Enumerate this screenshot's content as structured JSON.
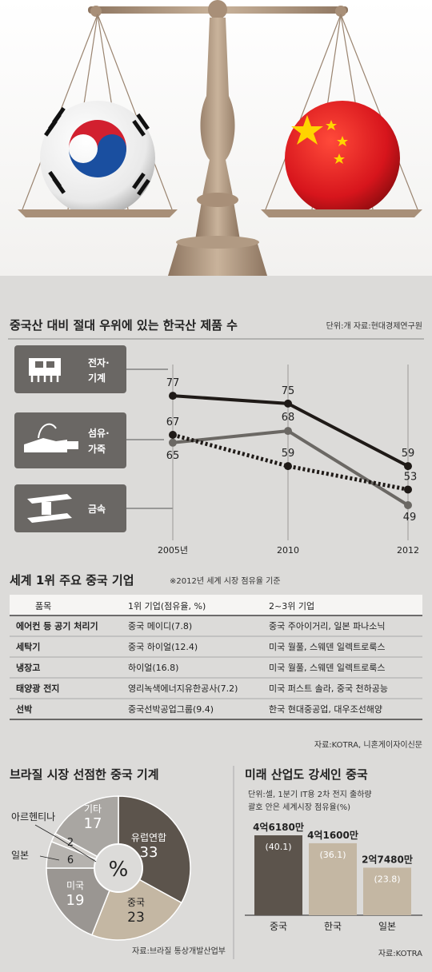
{
  "line_section": {
    "title": "중국산 대비 절대 우위에 있는 한국산 제품 수",
    "unit_source": "단위:개 자료:현대경제연구원",
    "categories": [
      {
        "label_line1": "전자·",
        "label_line2": "기계",
        "icon": "circuit-chip-icon"
      },
      {
        "label_line1": "섬유·",
        "label_line2": "가죽",
        "icon": "sneaker-icon"
      },
      {
        "label_line1": "금속",
        "label_line2": "",
        "icon": "steel-beam-icon"
      }
    ]
  },
  "table_section": {
    "title": "세계 1위 주요 중국 기업",
    "subtitle": "※2012년 세계 시장 점유율 기준",
    "headers": [
      "품목",
      "1위 기업(점유율, %)",
      "2~3위 기업"
    ],
    "rows": [
      [
        "에어컨 등 공기 처리기",
        "중국 메이디(7.8)",
        "중국 주아이거리, 일본 파나소닉"
      ],
      [
        "세탁기",
        "중국 하이얼(12.4)",
        "미국 월풀, 스웨덴 일렉트로룩스"
      ],
      [
        "냉장고",
        "하이얼(16.8)",
        "미국 월풀, 스웨덴 일렉트로룩스"
      ],
      [
        "태양광 전지",
        "영리녹색에너지유한공사(7.2)",
        "미국 퍼스트 솔라, 중국 천하공능"
      ],
      [
        "선박",
        "중국선박공업그룹(9.4)",
        "한국 현대중공업, 대우조선해양"
      ]
    ],
    "source": "자료:KOTRA, 니혼게이자이신문"
  },
  "pie_section": {
    "title": "브라질 시장 선점한 중국 기계",
    "center_label": "%",
    "source": "자료:브라질 통상개발산업부"
  },
  "bar_section": {
    "title": "미래 산업도 강세인 중국",
    "note_line1": "단위:셀, 1분기 IT용 2차 전지 출하량",
    "note_line2": "괄호 안은 세계시장 점유율(%)",
    "source": "자료:KOTRA"
  },
  "chart_data": [
    {
      "type": "line",
      "title": "중국산 대비 절대 우위에 있는 한국산 제품 수",
      "x": [
        "2005년",
        "2010",
        "2012"
      ],
      "series": [
        {
          "name": "전자·기계",
          "values": [
            77,
            75,
            59
          ],
          "color": "#1f1a17"
        },
        {
          "name": "섬유·가죽",
          "values": [
            65,
            68,
            49
          ],
          "color": "#6b6864"
        },
        {
          "name": "금속",
          "values": [
            67,
            59,
            53
          ],
          "color": "#1f1a17",
          "style": "dotted"
        }
      ],
      "ylim": [
        40,
        85
      ]
    },
    {
      "type": "pie",
      "title": "브라질 시장 선점한 중국 기계",
      "slices": [
        {
          "label": "유럽연합",
          "value": 33,
          "color": "#5c544c"
        },
        {
          "label": "중국",
          "value": 23,
          "color": "#c4b7a3"
        },
        {
          "label": "미국",
          "value": 19,
          "color": "#9a9692"
        },
        {
          "label": "일본",
          "value": 6,
          "color": "#b5b2ae"
        },
        {
          "label": "아르헨티나",
          "value": 2,
          "color": "#d2cfcb"
        },
        {
          "label": "기타",
          "value": 17,
          "color": "#a9a6a2"
        }
      ]
    },
    {
      "type": "bar",
      "title": "미래 산업도 강세인 중국",
      "categories": [
        "중국",
        "한국",
        "일본"
      ],
      "values": [
        461800000,
        416000000,
        274800000
      ],
      "value_labels": [
        "4억6180만",
        "4억1600만",
        "2억7480만"
      ],
      "shares": [
        "(40.1)",
        "(36.1)",
        "(23.8)"
      ],
      "colors": [
        "#5c544c",
        "#c4b7a3",
        "#c4b7a3"
      ]
    }
  ]
}
